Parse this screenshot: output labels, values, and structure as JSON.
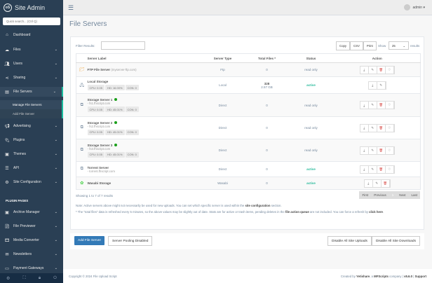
{
  "sidebar": {
    "brand": "Site Admin",
    "search_placeholder": "Quick search... (Ctrl Q)",
    "items": [
      {
        "label": "Dashboard",
        "icon": "home-icon"
      },
      {
        "label": "Files",
        "icon": "upload-icon"
      },
      {
        "label": "Users",
        "icon": "users-icon"
      },
      {
        "label": "Sharing",
        "icon": "share-icon"
      },
      {
        "label": "File Servers",
        "icon": "hdd-icon"
      },
      {
        "label": "Advertising",
        "icon": "bullhorn-icon"
      },
      {
        "label": "Plugins",
        "icon": "plug-icon"
      },
      {
        "label": "Themes",
        "icon": "image-icon"
      },
      {
        "label": "API",
        "icon": "server-icon"
      },
      {
        "label": "Site Configuration",
        "icon": "gear-icon"
      }
    ],
    "sub_items": [
      "Manage File Servers",
      "Add File Server"
    ],
    "plugin_header": "PLUGIN PAGES",
    "plugins": [
      {
        "label": "Archive Manager"
      },
      {
        "label": "File Previewer"
      },
      {
        "label": "Media Converter"
      },
      {
        "label": "Newsletters"
      },
      {
        "label": "Payment Gateways"
      }
    ]
  },
  "header": {
    "user": "admin"
  },
  "page": {
    "title": "File Servers",
    "filter_label": "Filter Results:",
    "export": [
      "Copy",
      "CSV",
      "Print"
    ],
    "show_label": "Show",
    "show_value": "25",
    "results_label": "results",
    "columns": [
      "Server Label",
      "Server Type",
      "Total Files *",
      "Status",
      "Action"
    ],
    "rows": [
      {
        "name": "FTP File Server",
        "host_inline": "(myserver-ftp.com)",
        "type": "Ftp",
        "files": "0",
        "status": "read only",
        "icon": "folder-icon",
        "actions": 4
      },
      {
        "name": "Local Storage",
        "tags": [
          "CPU: 0.05",
          "HD: 16.00%",
          "CON: 0"
        ],
        "type": "Local",
        "files": "328",
        "size": "2.57 GB",
        "status": "active",
        "icon": "server-icon",
        "actions": 2
      },
      {
        "name": "Storage Server 1",
        "online": true,
        "host": "- fs1.fhscript.com",
        "tags": [
          "CPU: 0.05",
          "HD: 45.01%",
          "CON: 0"
        ],
        "type": "Direct",
        "files": "0",
        "status": "read only",
        "icon": "sitemap-icon",
        "actions": 4
      },
      {
        "name": "Storage Server 2",
        "online": true,
        "host": "- fs2.fhscript.com",
        "tags": [
          "CPU: 0.05",
          "HD: 45.01%",
          "CON: 0"
        ],
        "type": "Direct",
        "files": "0",
        "status": "read only",
        "icon": "sitemap-icon",
        "actions": 4
      },
      {
        "name": "Storage Server 3",
        "online": true,
        "host": "- fs3.fhscript.com",
        "tags": [
          "CPU: 0.05",
          "HD: 45.01%",
          "CON: 0"
        ],
        "type": "Direct",
        "files": "0",
        "status": "read only",
        "icon": "sitemap-icon",
        "actions": 4
      },
      {
        "name": "Torrent Server",
        "host": "- torrent.fhscript.com",
        "type": "Direct",
        "files": "0",
        "status": "active",
        "icon": "sitemap-icon",
        "actions": 4
      },
      {
        "name": "Wasabi Storage",
        "type": "Wasabi",
        "files": "0",
        "status": "active",
        "icon": "wasabi-icon",
        "actions": 3
      }
    ],
    "showing": "Showing 1 to 7 of 7 results",
    "pagination": [
      "First",
      "Previous",
      "1",
      "Next",
      "Last"
    ],
    "note1_pre": "Note: Active servers above might not necessarily be used for new uploads. You can set which specific server is used within the ",
    "note1_link": "site configuration",
    "note1_post": " section.",
    "note2_pre": "* The \"total files\" data is refreshed every 5 minutes, so the above values may be slightly out of date. Stats are for active or trash items, pending deletes in the ",
    "note2_link": "file action queue",
    "note2_mid": " are not included. You can force a refresh by ",
    "note2_link2": "click here",
    "note2_post": ".",
    "buttons": {
      "add": "Add File Server",
      "pooling": "Server Pooling Disabled",
      "disable_uploads": "Disable All Site Uploads",
      "disable_downloads": "Disable All Site Downloads"
    }
  },
  "footer": {
    "copyright": "Copyright © 2024 File Upload Script",
    "created_pre": "Created by ",
    "brand1": "Yetishare",
    "mid": ", a ",
    "brand2": "MFScripts",
    "post": " company  |  ",
    "version": "v5.6.0",
    "sep": "  |  ",
    "support": "Support"
  },
  "colors": {
    "sidebar": "#2a3f54",
    "accent": "#1abb9c",
    "primary": "#337ab7",
    "active": "#26b99a"
  }
}
